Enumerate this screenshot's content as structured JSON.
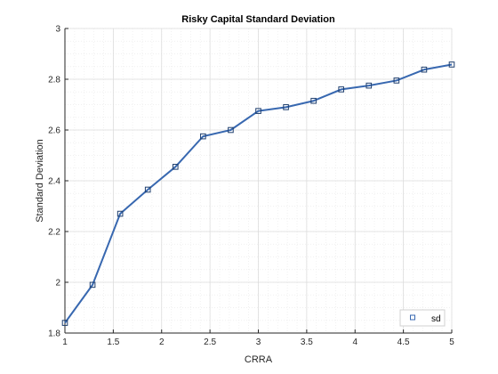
{
  "chart_data": {
    "type": "line",
    "title": "Risky Capital Standard Deviation",
    "xlabel": "CRRA",
    "ylabel": "Standard Deviation",
    "xlim": [
      1,
      5
    ],
    "ylim": [
      1.8,
      3
    ],
    "xticks": [
      "1",
      "1.5",
      "2",
      "2.5",
      "3",
      "3.5",
      "4",
      "4.5",
      "5"
    ],
    "yticks": [
      "1.8",
      "2",
      "2.2",
      "2.4",
      "2.6",
      "2.8",
      "3"
    ],
    "grid": "on (dotted, major and minor)",
    "legend_position": "bottom-right",
    "series": [
      {
        "name": "sd",
        "color": "#3868b0",
        "marker": "square",
        "x": [
          1.0,
          1.2857,
          1.5714,
          1.8571,
          2.1429,
          2.4286,
          2.7143,
          3.0,
          3.2857,
          3.5714,
          3.8571,
          4.1429,
          4.4286,
          4.7143,
          5.0
        ],
        "y": [
          1.84,
          1.99,
          2.27,
          2.365,
          2.455,
          2.575,
          2.6,
          2.675,
          2.69,
          2.715,
          2.76,
          2.775,
          2.795,
          2.838,
          2.858
        ]
      }
    ]
  }
}
